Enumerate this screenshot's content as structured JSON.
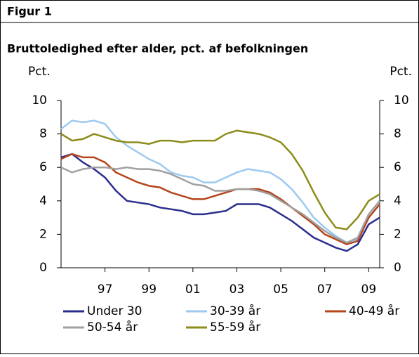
{
  "header": {
    "figure": "Figur 1"
  },
  "chart_data": {
    "type": "line",
    "title": "Bruttoledighed efter alder, pct. af befolkningen",
    "ylabel": "Pct.",
    "y2label": "Pct.",
    "x": [
      1995,
      1995.5,
      1996,
      1996.5,
      1997,
      1997.5,
      1998,
      1998.5,
      1999,
      1999.5,
      2000,
      2000.5,
      2001,
      2001.5,
      2002,
      2002.5,
      2003,
      2003.5,
      2004,
      2004.5,
      2005,
      2005.5,
      2006,
      2006.5,
      2007,
      2007.5,
      2008,
      2008.5,
      2009,
      2009.5
    ],
    "xlim": [
      1995,
      2009.5
    ],
    "xticks": [
      {
        "value": 1997,
        "label": "97"
      },
      {
        "value": 1999,
        "label": "99"
      },
      {
        "value": 2001,
        "label": "01"
      },
      {
        "value": 2003,
        "label": "03"
      },
      {
        "value": 2005,
        "label": "05"
      },
      {
        "value": 2007,
        "label": "07"
      },
      {
        "value": 2009,
        "label": "09"
      }
    ],
    "ylim": [
      0,
      10
    ],
    "yticks": [
      0,
      2,
      4,
      6,
      8,
      10
    ],
    "y2lim": [
      0,
      10
    ],
    "y2ticks": [
      0,
      2,
      4,
      6,
      8,
      10
    ],
    "series": [
      {
        "name": "Under 30",
        "color": "#2b2e8c",
        "values": [
          6.6,
          6.8,
          6.3,
          5.9,
          5.4,
          4.6,
          4.0,
          3.9,
          3.8,
          3.6,
          3.5,
          3.4,
          3.2,
          3.2,
          3.3,
          3.4,
          3.8,
          3.8,
          3.8,
          3.6,
          3.2,
          2.8,
          2.3,
          1.8,
          1.5,
          1.2,
          1.0,
          1.4,
          2.6,
          3.0
        ]
      },
      {
        "name": "30-39 år",
        "color": "#9ec9f0",
        "values": [
          8.3,
          8.8,
          8.7,
          8.8,
          8.6,
          7.8,
          7.3,
          6.9,
          6.5,
          6.2,
          5.7,
          5.5,
          5.4,
          5.1,
          5.1,
          5.4,
          5.7,
          5.9,
          5.8,
          5.7,
          5.3,
          4.7,
          3.9,
          3.0,
          2.4,
          1.9,
          1.5,
          1.7,
          3.0,
          3.8
        ]
      },
      {
        "name": "40-49 år",
        "color": "#b5451b",
        "values": [
          6.5,
          6.8,
          6.6,
          6.6,
          6.3,
          5.7,
          5.4,
          5.1,
          4.9,
          4.8,
          4.5,
          4.3,
          4.1,
          4.1,
          4.3,
          4.5,
          4.7,
          4.7,
          4.7,
          4.5,
          4.1,
          3.6,
          3.1,
          2.6,
          2.0,
          1.7,
          1.4,
          1.6,
          3.0,
          3.8
        ]
      },
      {
        "name": "50-54 år",
        "color": "#a0a0a0",
        "values": [
          6.0,
          5.7,
          5.9,
          6.0,
          6.0,
          5.9,
          6.0,
          5.9,
          5.9,
          5.8,
          5.6,
          5.3,
          5.0,
          4.9,
          4.6,
          4.6,
          4.7,
          4.7,
          4.6,
          4.4,
          4.0,
          3.6,
          3.2,
          2.7,
          2.2,
          1.8,
          1.5,
          1.8,
          3.2,
          4.0
        ]
      },
      {
        "name": "55-59 år",
        "color": "#8c8c1a",
        "values": [
          8.0,
          7.6,
          7.7,
          8.0,
          7.8,
          7.6,
          7.5,
          7.5,
          7.4,
          7.6,
          7.6,
          7.5,
          7.6,
          7.6,
          7.6,
          8.0,
          8.2,
          8.1,
          8.0,
          7.8,
          7.5,
          6.8,
          5.8,
          4.5,
          3.3,
          2.4,
          2.3,
          3.0,
          4.0,
          4.4
        ]
      }
    ]
  }
}
